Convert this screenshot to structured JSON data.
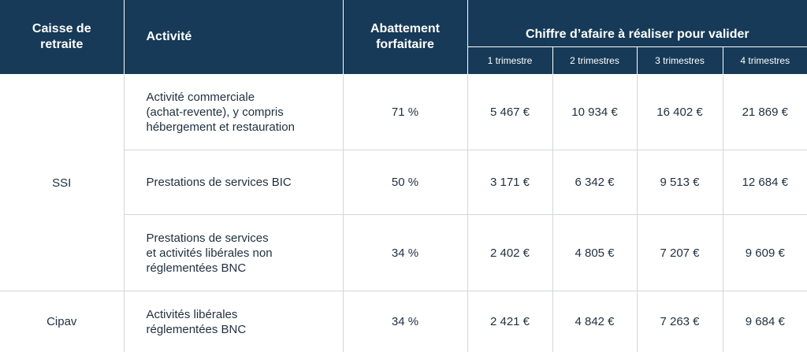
{
  "header": {
    "caisse": [
      "Caisse de",
      "retraite"
    ],
    "activite": "Activité",
    "abattement": [
      "Abattement",
      "forfaitaire"
    ],
    "chiffre": "Chiffre d’afaire à réaliser pour valider",
    "periods": [
      "1 trimestre",
      "2 trimestres",
      "3 trimestres",
      "4 trimestres"
    ]
  },
  "rows": [
    {
      "activite": [
        "Activité commerciale",
        "(achat-revente), y compris",
        "hébergement et restauration"
      ],
      "abattement": "71 %",
      "values": [
        "5 467 €",
        "10 934 €",
        "16 402 €",
        "21 869 €"
      ]
    },
    {
      "activite": [
        "Prestations de services BIC"
      ],
      "abattement": "50 %",
      "values": [
        "3 171 €",
        "6 342 €",
        "9 513 €",
        "12 684 €"
      ]
    },
    {
      "activite": [
        "Prestations de services",
        "et activités libérales non",
        "réglementées BNC"
      ],
      "abattement": "34 %",
      "values": [
        "2 402 €",
        "4 805 €",
        "7 207 €",
        "9 609 €"
      ]
    },
    {
      "activite": [
        "Activités libérales",
        "réglementées BNC"
      ],
      "abattement": "34 %",
      "values": [
        "2 421 €",
        "4 842 €",
        "7 263 €",
        "9 684 €"
      ]
    }
  ],
  "groups": {
    "ssi": "SSI",
    "cipav": "Cipav"
  },
  "colors": {
    "header_bg": "#163a57",
    "header_text": "#ffffff",
    "border": "#d2d6da",
    "body_text": "#1f2f3f"
  }
}
